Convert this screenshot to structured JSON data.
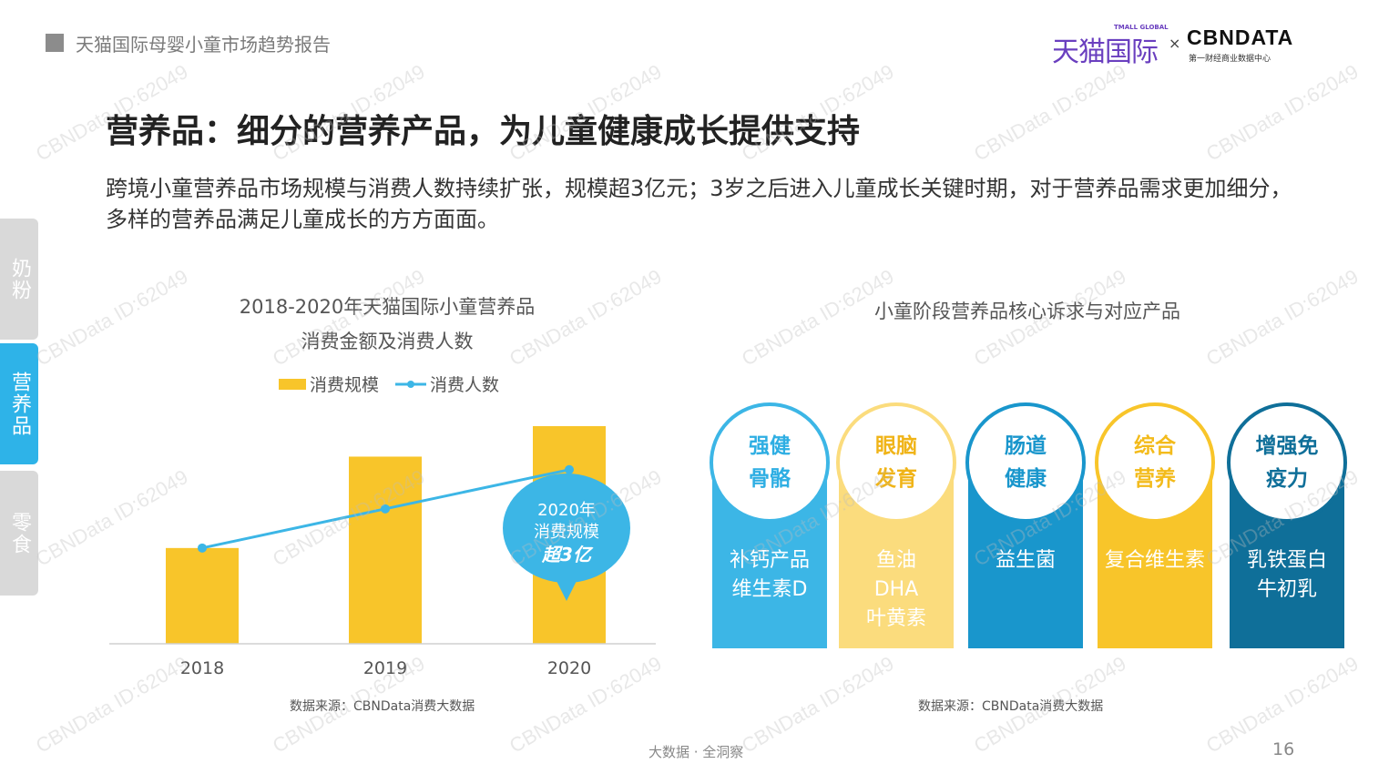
{
  "header": {
    "report_title": "天猫国际母婴小童市场趋势报告",
    "logo_tmall": "天猫国际",
    "logo_tmall_global": "TMALL GLOBAL",
    "logo_times": "×",
    "logo_cbn": "CBNDATA",
    "logo_cbn_sub": "第一财经商业数据中心"
  },
  "main": {
    "heading": "营养品：细分的营养产品，为儿童健康成长提供支持",
    "description": "跨境小童营养品市场规模与消费人数持续扩张，规模超3亿元；3岁之后进入儿童成长关键时期，对于营养品需求更加细分，多样的营养品满足儿童成长的方方面面。"
  },
  "sidebar": {
    "tabs": [
      {
        "label": "奶粉",
        "active": false
      },
      {
        "label": "营养品",
        "active": true
      },
      {
        "label": "零食",
        "active": false
      }
    ]
  },
  "left_chart": {
    "title_line1": "2018-2020年天猫国际小童营养品",
    "title_line2": "消费金额及消费人数",
    "legend_bar": "消费规模",
    "legend_line": "消费人数",
    "callout_line1": "2020年",
    "callout_line2": "消费规模",
    "callout_line3": "超3亿",
    "source": "数据来源：CBNData消费大数据"
  },
  "chart_data": {
    "type": "bar",
    "categories": [
      "2018",
      "2019",
      "2020"
    ],
    "series": [
      {
        "name": "消费规模",
        "type": "bar",
        "values": [
          0.44,
          0.86,
          1.0
        ],
        "color": "#f8c52a"
      },
      {
        "name": "消费人数",
        "type": "line",
        "values": [
          0.44,
          0.62,
          0.8
        ],
        "color": "#3cb6e6"
      }
    ],
    "title": "2018-2020年天猫国际小童营养品 消费金额及消费人数",
    "ylim": [
      0,
      1
    ],
    "grid": false,
    "legend": "top"
  },
  "right_panel": {
    "title": "小童阶段营养品核心诉求与对应产品",
    "source": "数据来源：CBNData消费大数据",
    "cards": [
      {
        "need": "强健\n骨骼",
        "products": "补钙产品\n维生素D",
        "color": "#3cb6e6",
        "text_color": "#2eaee3"
      },
      {
        "need": "眼脑\n发育",
        "products": "鱼油\nDHA\n叶黄素",
        "color": "#fbdc7d",
        "text_color": "#f0b418"
      },
      {
        "need": "肠道\n健康",
        "products": "益生菌",
        "color": "#1996cc",
        "text_color": "#1996cc"
      },
      {
        "need": "综合\n营养",
        "products": "复合维生素",
        "color": "#f8c52a",
        "text_color": "#f3bb1b"
      },
      {
        "need": "增强免\n疫力",
        "products": "乳铁蛋白\n牛初乳",
        "color": "#0f6f99",
        "text_color": "#0f6f99"
      }
    ]
  },
  "footer": {
    "text": "大数据 · 全洞察",
    "page_number": "16"
  },
  "watermark": "CBNData ID:62049"
}
